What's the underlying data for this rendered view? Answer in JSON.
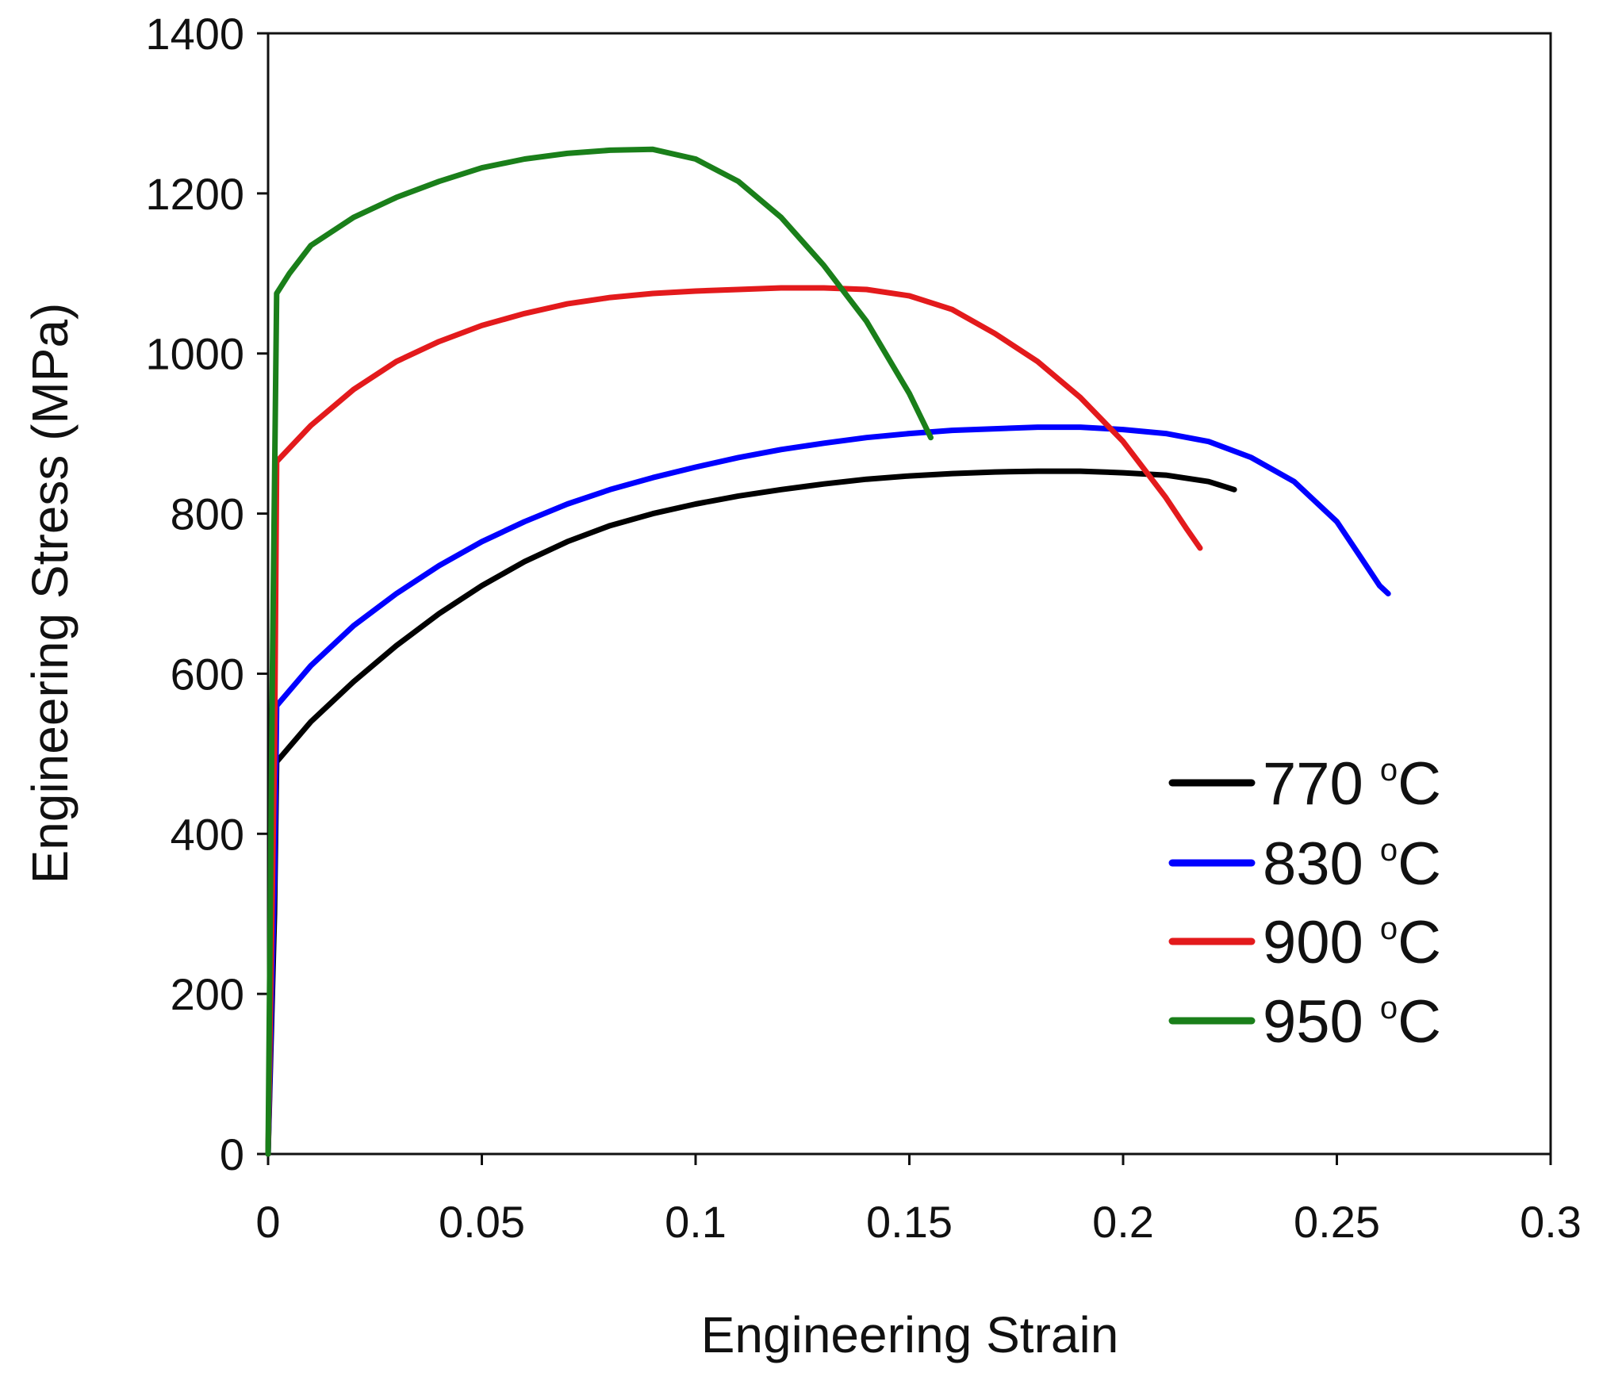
{
  "chart_data": {
    "type": "line",
    "title": "",
    "xlabel": "Engineering Strain",
    "ylabel": "Engineering Stress (MPa)",
    "xlim": [
      0,
      0.3
    ],
    "ylim": [
      0,
      1400
    ],
    "xticks": [
      0,
      0.05,
      0.1,
      0.15,
      0.2,
      0.25,
      0.3
    ],
    "xtick_labels": [
      "0",
      "0.05",
      "0.1",
      "0.15",
      "0.2",
      "0.25",
      "0.3"
    ],
    "yticks": [
      0,
      200,
      400,
      600,
      800,
      1000,
      1200,
      1400
    ],
    "ytick_labels": [
      "0",
      "200",
      "400",
      "600",
      "800",
      "1000",
      "1200",
      "1400"
    ],
    "grid": false,
    "legend_position": "bottom-right",
    "series": [
      {
        "name": "770",
        "unit_sup": "o",
        "unit": "C",
        "color": "#000000",
        "points": [
          [
            0,
            0
          ],
          [
            0.0015,
            300
          ],
          [
            0.002,
            490
          ],
          [
            0.01,
            540
          ],
          [
            0.02,
            590
          ],
          [
            0.03,
            635
          ],
          [
            0.04,
            675
          ],
          [
            0.05,
            710
          ],
          [
            0.06,
            740
          ],
          [
            0.07,
            765
          ],
          [
            0.08,
            785
          ],
          [
            0.09,
            800
          ],
          [
            0.1,
            812
          ],
          [
            0.11,
            822
          ],
          [
            0.12,
            830
          ],
          [
            0.13,
            837
          ],
          [
            0.14,
            843
          ],
          [
            0.15,
            847
          ],
          [
            0.16,
            850
          ],
          [
            0.17,
            852
          ],
          [
            0.18,
            853
          ],
          [
            0.19,
            853
          ],
          [
            0.2,
            851
          ],
          [
            0.21,
            848
          ],
          [
            0.22,
            840
          ],
          [
            0.226,
            830
          ]
        ]
      },
      {
        "name": "830",
        "unit_sup": "o",
        "unit": "C",
        "color": "#0000ff",
        "points": [
          [
            0,
            0
          ],
          [
            0.0015,
            350
          ],
          [
            0.002,
            560
          ],
          [
            0.01,
            610
          ],
          [
            0.02,
            660
          ],
          [
            0.03,
            700
          ],
          [
            0.04,
            735
          ],
          [
            0.05,
            765
          ],
          [
            0.06,
            790
          ],
          [
            0.07,
            812
          ],
          [
            0.08,
            830
          ],
          [
            0.09,
            845
          ],
          [
            0.1,
            858
          ],
          [
            0.11,
            870
          ],
          [
            0.12,
            880
          ],
          [
            0.13,
            888
          ],
          [
            0.14,
            895
          ],
          [
            0.15,
            900
          ],
          [
            0.16,
            904
          ],
          [
            0.17,
            906
          ],
          [
            0.18,
            908
          ],
          [
            0.19,
            908
          ],
          [
            0.2,
            905
          ],
          [
            0.21,
            900
          ],
          [
            0.22,
            890
          ],
          [
            0.23,
            870
          ],
          [
            0.24,
            840
          ],
          [
            0.25,
            790
          ],
          [
            0.255,
            750
          ],
          [
            0.26,
            710
          ],
          [
            0.262,
            700
          ]
        ]
      },
      {
        "name": "900",
        "unit_sup": "o",
        "unit": "C",
        "color": "#e31a1c",
        "points": [
          [
            0,
            0
          ],
          [
            0.0015,
            500
          ],
          [
            0.002,
            865
          ],
          [
            0.01,
            910
          ],
          [
            0.02,
            955
          ],
          [
            0.03,
            990
          ],
          [
            0.04,
            1015
          ],
          [
            0.05,
            1035
          ],
          [
            0.06,
            1050
          ],
          [
            0.07,
            1062
          ],
          [
            0.08,
            1070
          ],
          [
            0.09,
            1075
          ],
          [
            0.1,
            1078
          ],
          [
            0.11,
            1080
          ],
          [
            0.12,
            1082
          ],
          [
            0.13,
            1082
          ],
          [
            0.14,
            1080
          ],
          [
            0.15,
            1072
          ],
          [
            0.16,
            1055
          ],
          [
            0.17,
            1025
          ],
          [
            0.18,
            990
          ],
          [
            0.19,
            945
          ],
          [
            0.2,
            890
          ],
          [
            0.21,
            820
          ],
          [
            0.215,
            780
          ],
          [
            0.218,
            757
          ]
        ]
      },
      {
        "name": "950",
        "unit_sup": "o",
        "unit": "C",
        "color": "#1a7f1a",
        "points": [
          [
            0,
            0
          ],
          [
            0.001,
            600
          ],
          [
            0.002,
            1075
          ],
          [
            0.005,
            1100
          ],
          [
            0.01,
            1135
          ],
          [
            0.02,
            1170
          ],
          [
            0.03,
            1195
          ],
          [
            0.04,
            1215
          ],
          [
            0.05,
            1232
          ],
          [
            0.06,
            1243
          ],
          [
            0.07,
            1250
          ],
          [
            0.08,
            1254
          ],
          [
            0.09,
            1255
          ],
          [
            0.1,
            1243
          ],
          [
            0.11,
            1215
          ],
          [
            0.12,
            1170
          ],
          [
            0.13,
            1110
          ],
          [
            0.14,
            1040
          ],
          [
            0.15,
            950
          ],
          [
            0.155,
            895
          ]
        ]
      }
    ]
  }
}
